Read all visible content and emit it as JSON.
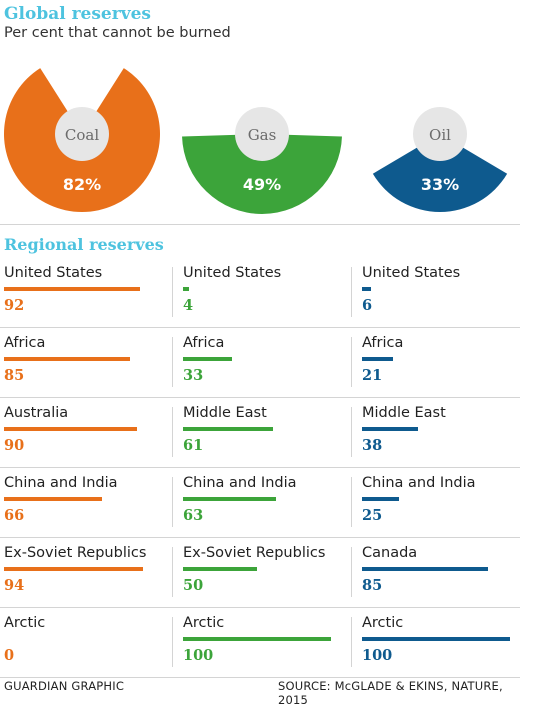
{
  "header": {
    "title": "Global reserves",
    "subtitle": "Per cent that cannot be burned"
  },
  "regional_title": "Regional reserves",
  "footer": {
    "credit": "GUARDIAN GRAPHIC",
    "source": "SOURCE: McGLADE & EKINS, NATURE, 2015"
  },
  "chart_data": [
    {
      "type": "pie",
      "title": "Global reserves",
      "subtitle": "Per cent that cannot be burned",
      "series": [
        {
          "name": "Coal",
          "value": 82,
          "label": "82%",
          "color": "#e8701a"
        },
        {
          "name": "Gas",
          "value": 49,
          "label": "49%",
          "color": "#3ca43a"
        },
        {
          "name": "Oil",
          "value": 33,
          "label": "33%",
          "color": "#0e5a8e"
        }
      ]
    },
    {
      "type": "bar",
      "title": "Regional reserves",
      "xlim": [
        0,
        100
      ],
      "columns": [
        {
          "fuel": "Coal",
          "color": "#e8701a",
          "rows": [
            {
              "region": "United States",
              "value": 92
            },
            {
              "region": "Africa",
              "value": 85
            },
            {
              "region": "Australia",
              "value": 90
            },
            {
              "region": "China and India",
              "value": 66
            },
            {
              "region": "Ex-Soviet Republics",
              "value": 94
            },
            {
              "region": "Arctic",
              "value": 0
            }
          ]
        },
        {
          "fuel": "Gas",
          "color": "#3ca43a",
          "rows": [
            {
              "region": "United States",
              "value": 4
            },
            {
              "region": "Africa",
              "value": 33
            },
            {
              "region": "Middle East",
              "value": 61
            },
            {
              "region": "China and India",
              "value": 63
            },
            {
              "region": "Ex-Soviet Republics",
              "value": 50
            },
            {
              "region": "Arctic",
              "value": 100
            }
          ]
        },
        {
          "fuel": "Oil",
          "color": "#0e5a8e",
          "rows": [
            {
              "region": "United States",
              "value": 6
            },
            {
              "region": "Africa",
              "value": 21
            },
            {
              "region": "Middle East",
              "value": 38
            },
            {
              "region": "China and India",
              "value": 25
            },
            {
              "region": "Canada",
              "value": 85
            },
            {
              "region": "Arctic",
              "value": 100
            }
          ]
        }
      ]
    }
  ]
}
